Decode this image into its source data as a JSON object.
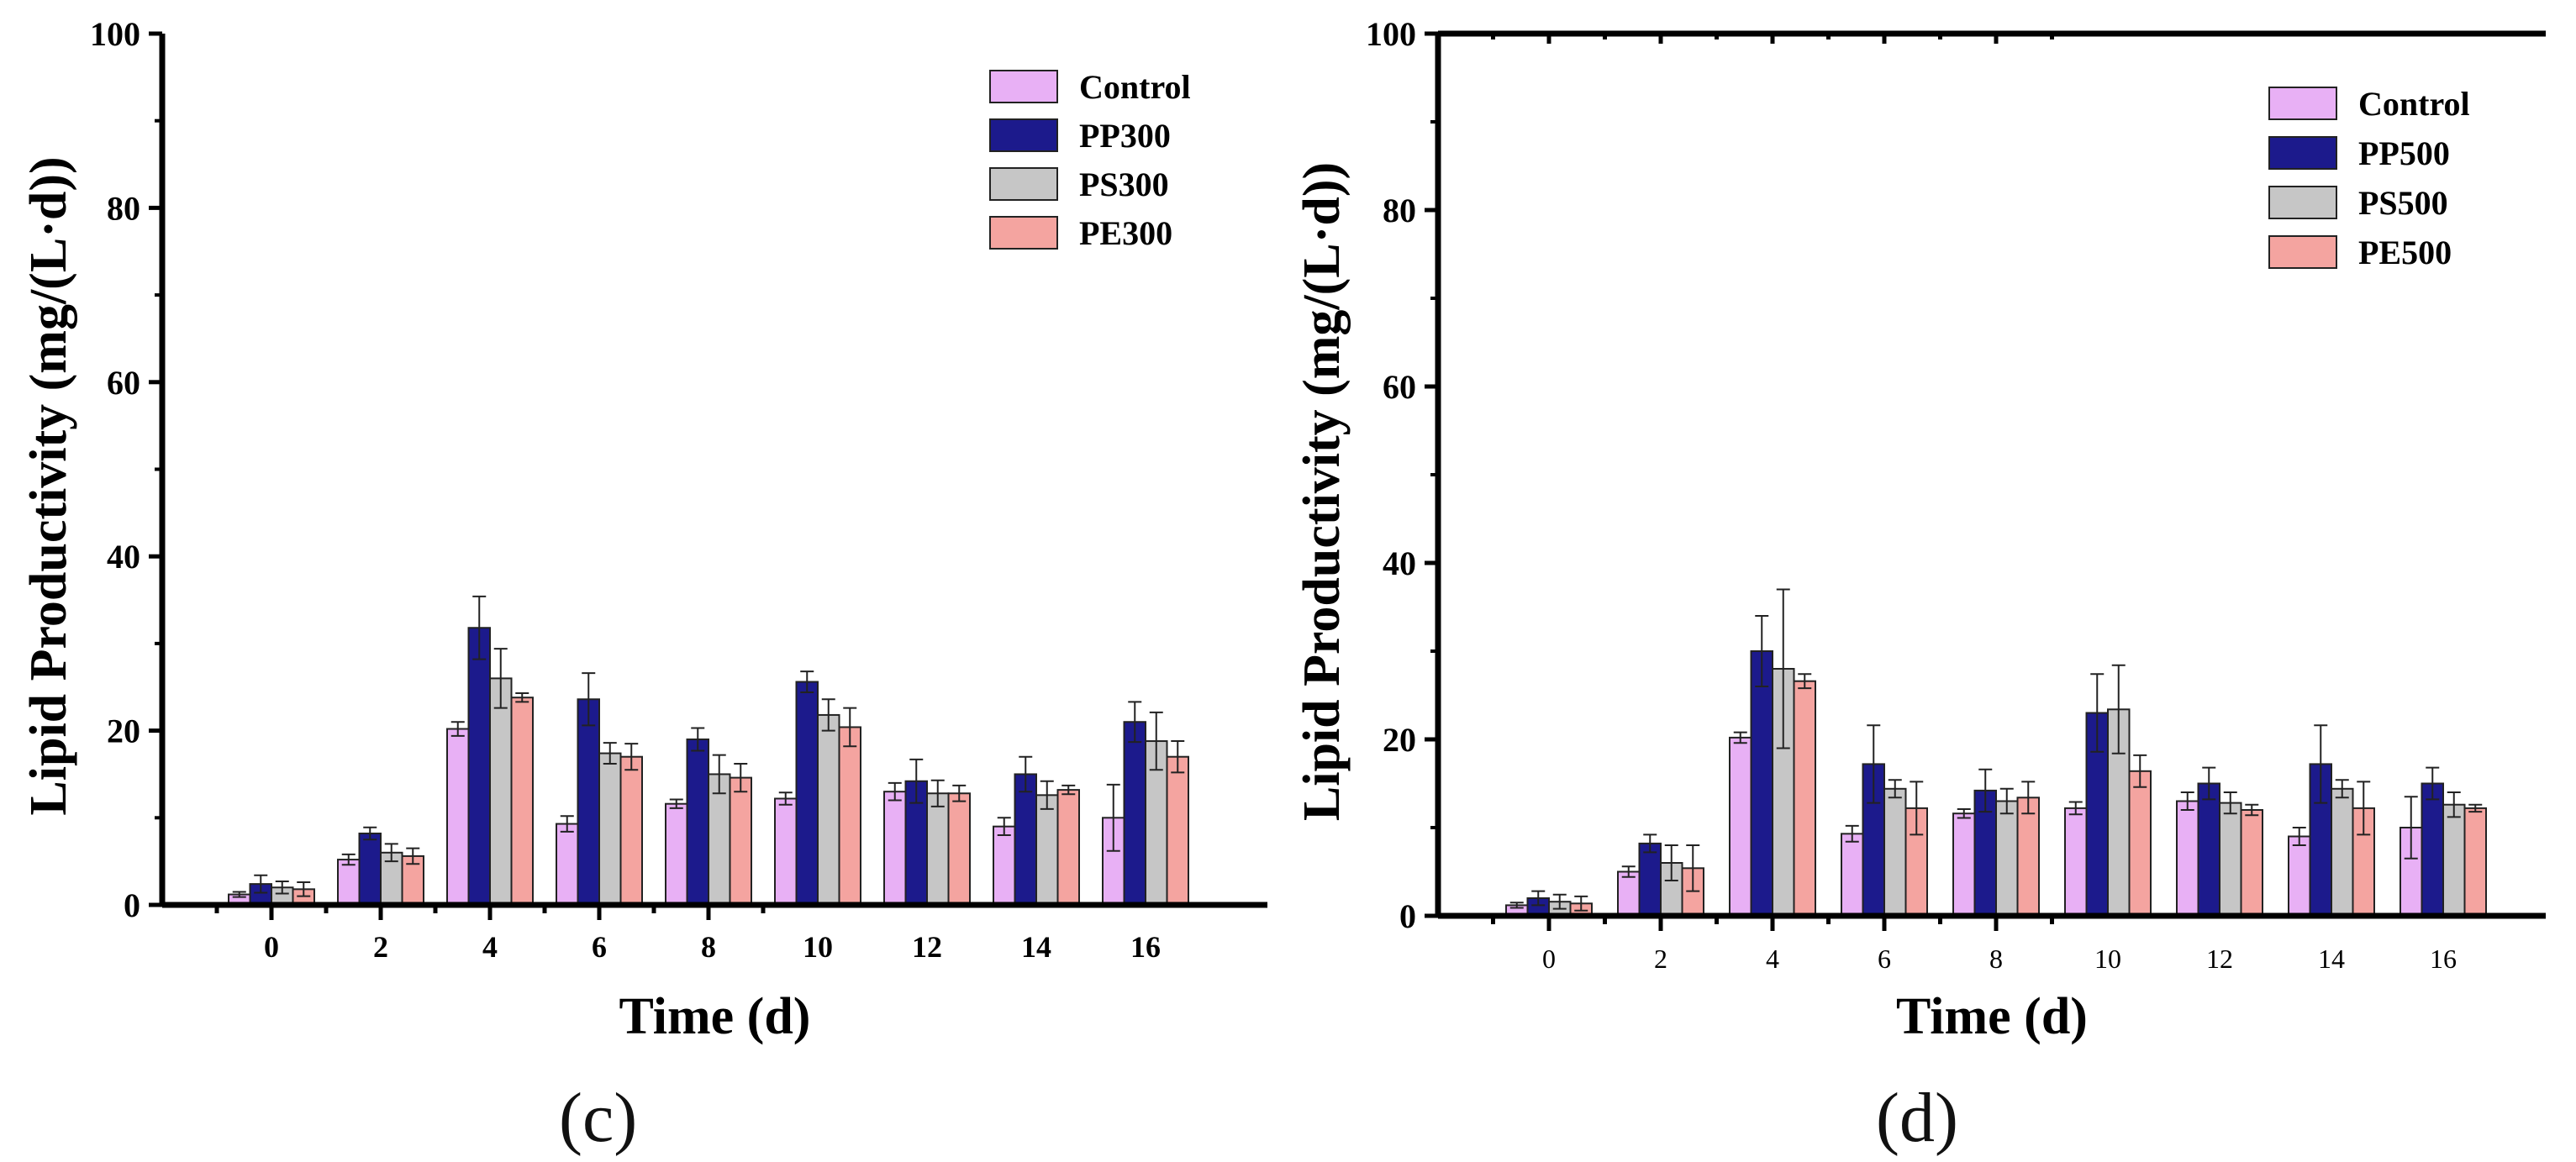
{
  "chart_data": [
    {
      "type": "bar",
      "panel": "(c)",
      "xlabel": "Time (d)",
      "ylabel": "Lipid Productivity (mg/(L·d))",
      "ylim": [
        0,
        100
      ],
      "yticks": [
        "0",
        "20",
        "40",
        "60",
        "80",
        "100"
      ],
      "categories": [
        "0",
        "2",
        "4",
        "6",
        "8",
        "10",
        "12",
        "14",
        "16"
      ],
      "legend_position": "top-right",
      "series": [
        {
          "name": "Control",
          "color": "#e8b0f5",
          "values": [
            1.2,
            5.2,
            20.2,
            9.3,
            11.6,
            12.2,
            13.0,
            9.0,
            10.0
          ],
          "errors": [
            0.3,
            0.6,
            0.8,
            0.9,
            0.5,
            0.7,
            1.0,
            1.0,
            3.8
          ]
        },
        {
          "name": "PP300",
          "color": "#1c1a8c",
          "values": [
            2.4,
            8.2,
            31.8,
            23.6,
            19.0,
            25.6,
            14.2,
            15.0,
            21.0
          ],
          "errors": [
            1.0,
            0.7,
            3.6,
            3.0,
            1.3,
            1.2,
            2.5,
            2.0,
            2.3
          ]
        },
        {
          "name": "PS300",
          "color": "#c6c6c6",
          "values": [
            2.0,
            6.0,
            26.0,
            17.4,
            15.0,
            21.8,
            12.8,
            12.6,
            18.8
          ],
          "errors": [
            0.7,
            1.0,
            3.4,
            1.2,
            2.2,
            1.8,
            1.5,
            1.6,
            3.3
          ]
        },
        {
          "name": "PE300",
          "color": "#f4a4a0",
          "values": [
            1.8,
            5.6,
            23.8,
            17.0,
            14.6,
            20.4,
            12.8,
            13.2,
            17.0
          ],
          "errors": [
            0.8,
            0.9,
            0.5,
            1.5,
            1.6,
            2.2,
            0.9,
            0.5,
            1.8
          ]
        }
      ]
    },
    {
      "type": "bar",
      "panel": "(d)",
      "xlabel": "Time (d)",
      "ylabel": "Lipid Productivity (mg/(L·d))",
      "ylim": [
        0,
        100
      ],
      "yticks": [
        "0",
        "20",
        "40",
        "60",
        "80",
        "100"
      ],
      "categories": [
        "0",
        "2",
        "4",
        "6",
        "8",
        "10",
        "12",
        "14",
        "16"
      ],
      "legend_position": "top-right",
      "series": [
        {
          "name": "Control",
          "color": "#e8b0f5",
          "values": [
            1.2,
            5.0,
            20.2,
            9.3,
            11.6,
            12.2,
            13.0,
            9.0,
            10.0
          ],
          "errors": [
            0.3,
            0.6,
            0.6,
            0.9,
            0.5,
            0.7,
            1.0,
            1.0,
            3.5
          ]
        },
        {
          "name": "PP500",
          "color": "#1c1a8c",
          "values": [
            2.0,
            8.2,
            30.0,
            17.2,
            14.2,
            23.0,
            15.0,
            17.2,
            15.0
          ],
          "errors": [
            0.8,
            1.0,
            4.0,
            4.4,
            2.4,
            4.4,
            1.8,
            4.4,
            1.8
          ]
        },
        {
          "name": "PS500",
          "color": "#c6c6c6",
          "values": [
            1.6,
            6.0,
            28.0,
            14.4,
            13.0,
            23.4,
            12.8,
            14.4,
            12.6
          ],
          "errors": [
            0.8,
            2.0,
            9.0,
            1.0,
            1.4,
            5.0,
            1.2,
            1.0,
            1.4
          ]
        },
        {
          "name": "PE500",
          "color": "#f4a4a0",
          "values": [
            1.4,
            5.4,
            26.6,
            12.2,
            13.4,
            16.4,
            12.0,
            12.2,
            12.2
          ],
          "errors": [
            0.8,
            2.6,
            0.8,
            3.0,
            1.8,
            1.8,
            0.6,
            3.0,
            0.4
          ]
        }
      ]
    }
  ]
}
